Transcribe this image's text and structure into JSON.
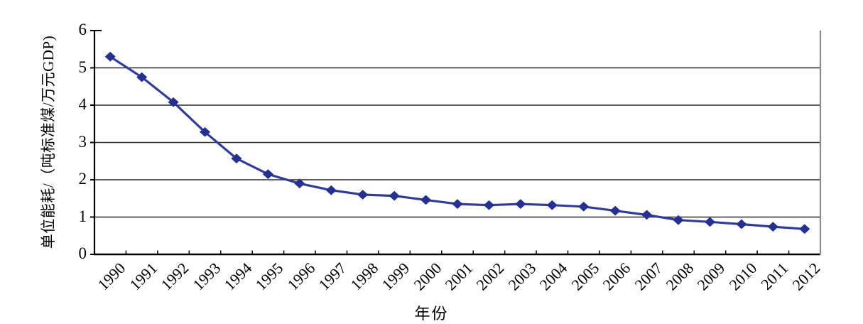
{
  "chart_data": {
    "type": "line",
    "title": "",
    "xlabel": "年份",
    "ylabel": "单位能耗/（吨标准煤/万元GDP)",
    "categories": [
      "1990",
      "1991",
      "1992",
      "1993",
      "1994",
      "1995",
      "1996",
      "1997",
      "1998",
      "1999",
      "2000",
      "2001",
      "2002",
      "2003",
      "2004",
      "2005",
      "2006",
      "2007",
      "2008",
      "2009",
      "2010",
      "2011",
      "2012"
    ],
    "values": [
      5.3,
      4.75,
      4.08,
      3.28,
      2.57,
      2.15,
      1.9,
      1.72,
      1.6,
      1.57,
      1.46,
      1.35,
      1.32,
      1.35,
      1.32,
      1.28,
      1.17,
      1.06,
      0.92,
      0.87,
      0.81,
      0.74,
      0.68
    ],
    "ylim": [
      0,
      6
    ],
    "yticks": [
      "0",
      "1",
      "2",
      "3",
      "4",
      "5",
      "6"
    ],
    "grid": "horizontal-only",
    "legend_position": "none",
    "marker": "diamond",
    "colors": {
      "line": "#303C98",
      "marker": "#25308F",
      "gridline": "#2B2B2B",
      "axis": "#000000",
      "right_border": "#8C8C8C",
      "background": "#FFFFFF"
    }
  }
}
